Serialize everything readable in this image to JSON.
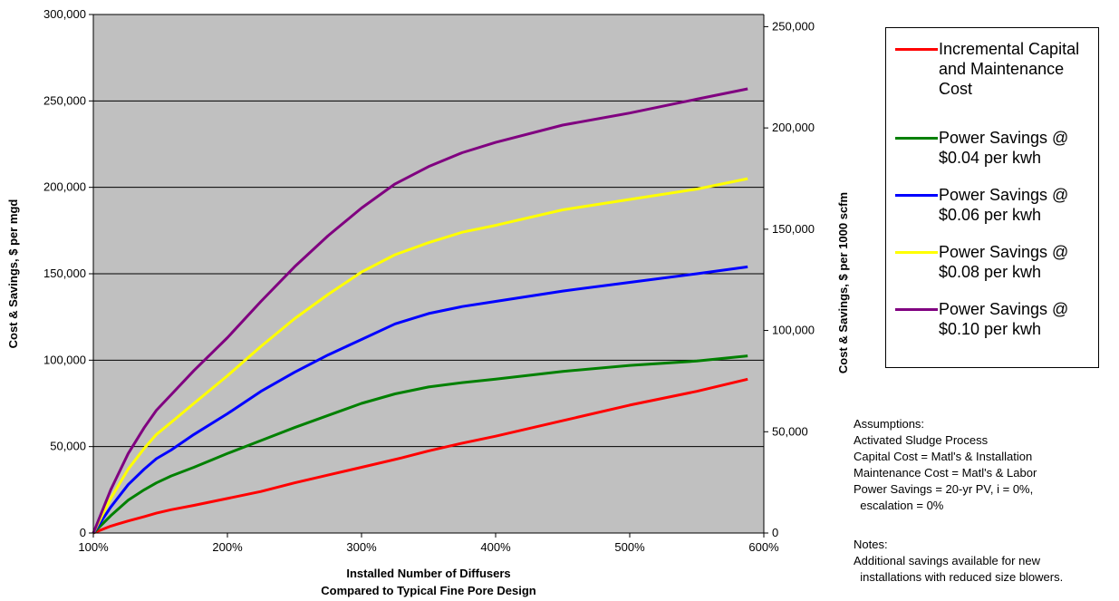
{
  "chart_data": {
    "type": "line",
    "xlabel": "Installed Number of Diffusers\nCompared to Typical Fine Pore Design",
    "ylabel": "Cost & Savings, $ per mgd",
    "y2label": "Cost & Savings, $ per 1000 scfm",
    "xlim": [
      100,
      600
    ],
    "ylim": [
      0,
      300000
    ],
    "y2lim": [
      0,
      256000
    ],
    "x_ticks": [
      "100%",
      "200%",
      "300%",
      "400%",
      "500%",
      "600%"
    ],
    "y_ticks": [
      "0",
      "50,000",
      "100,000",
      "150,000",
      "200,000",
      "250,000",
      "300,000"
    ],
    "y2_ticks": [
      "0",
      "50,000",
      "100,000",
      "150,000",
      "200,000",
      "250,000"
    ],
    "grid": "horizontal",
    "plot_background": "#c0c0c0",
    "legend_position": "right",
    "series": [
      {
        "name": "Incremental Capital\nand Maintenance\nCost",
        "color": "#ff0000",
        "x": [
          100,
          113,
          126,
          138,
          147,
          158,
          175,
          200,
          225,
          250,
          275,
          300,
          330,
          350,
          375,
          400,
          450,
          500,
          550,
          588
        ],
        "y": [
          0,
          4000,
          7000,
          9500,
          11500,
          13500,
          16000,
          20000,
          24000,
          29000,
          33500,
          38000,
          43500,
          47500,
          52000,
          56000,
          65000,
          74000,
          82000,
          89000
        ]
      },
      {
        "name": "Power Savings @\n$0.04 per kwh",
        "color": "#008000",
        "x": [
          100,
          113,
          126,
          138,
          147,
          158,
          175,
          200,
          225,
          250,
          275,
          300,
          325,
          350,
          375,
          400,
          450,
          500,
          550,
          588
        ],
        "y": [
          0,
          10000,
          19000,
          25000,
          29000,
          33000,
          38000,
          46000,
          53500,
          61000,
          68000,
          75000,
          80500,
          84500,
          87000,
          89000,
          93500,
          97000,
          99500,
          102500
        ]
      },
      {
        "name": "Power Savings @\n$0.06 per kwh",
        "color": "#0000ff",
        "x": [
          100,
          113,
          126,
          138,
          147,
          158,
          175,
          200,
          225,
          250,
          275,
          300,
          325,
          350,
          375,
          400,
          450,
          500,
          550,
          588
        ],
        "y": [
          0,
          15000,
          28000,
          37000,
          43000,
          48000,
          57000,
          69000,
          82000,
          93000,
          103000,
          112000,
          121000,
          127000,
          131000,
          134000,
          140000,
          145000,
          150000,
          154000
        ]
      },
      {
        "name": "Power Savings @\n$0.08 per kwh",
        "color": "#ffff00",
        "x": [
          100,
          113,
          126,
          138,
          147,
          158,
          175,
          200,
          225,
          250,
          275,
          300,
          325,
          350,
          375,
          400,
          450,
          500,
          550,
          588
        ],
        "y": [
          0,
          20000,
          37000,
          49000,
          57000,
          64000,
          75000,
          91000,
          108000,
          124000,
          138000,
          151000,
          161000,
          168000,
          174000,
          178000,
          187000,
          193000,
          199000,
          205000
        ]
      },
      {
        "name": "Power Savings @\n$0.10 per kwh",
        "color": "#800080",
        "x": [
          100,
          113,
          126,
          138,
          147,
          158,
          175,
          200,
          225,
          250,
          275,
          300,
          325,
          350,
          375,
          400,
          450,
          500,
          550,
          588
        ],
        "y": [
          0,
          25000,
          46000,
          61000,
          71000,
          80000,
          94000,
          113000,
          134000,
          154000,
          172000,
          188000,
          202000,
          212000,
          220000,
          226000,
          236000,
          243000,
          251000,
          257000
        ]
      }
    ]
  },
  "notes": {
    "assumptions": "Assumptions:\nActivated Sludge Process\nCapital Cost = Matl's & Installation\nMaintenance Cost = Matl's & Labor\nPower Savings = 20-yr PV, i = 0%,\n  escalation = 0%",
    "notes": "Notes:\nAdditional savings available for new\n  installations with reduced size blowers."
  }
}
